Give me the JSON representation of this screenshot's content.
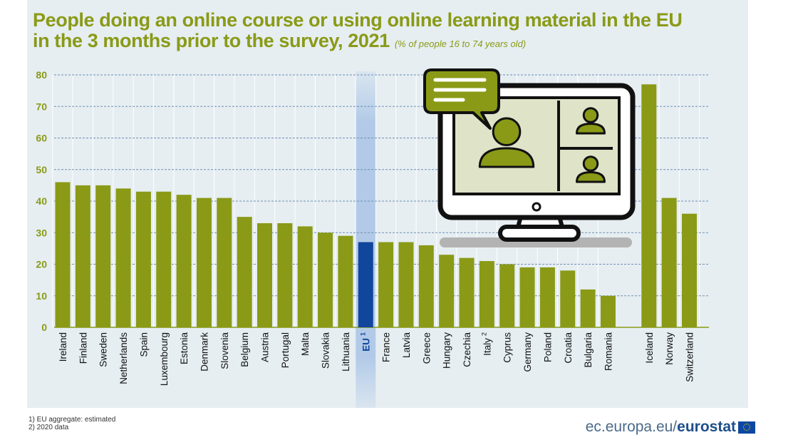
{
  "title": {
    "line1": "People doing an online course or using online learning material in the EU",
    "line2": "in the 3 months prior to the survey,  2021",
    "subtitle": "(% of people 16 to 74 years old)"
  },
  "footnotes": [
    "1) EU aggregate: estimated",
    "2) 2020 data"
  ],
  "logo": {
    "prefix": "ec.europa.eu/",
    "bold": "eurostat"
  },
  "colors": {
    "bar": "#8a9a16",
    "highlight_bar": "#10469c",
    "highlight_band": "#a9c4e6",
    "grid": "#6f8fb0",
    "panel": "#e6eef2",
    "title": "#8a9a16"
  },
  "illustration": {
    "icons": [
      "speech-bubble-icon",
      "monitor-icon",
      "user-icon",
      "user-icon",
      "user-icon"
    ]
  },
  "chart_data": {
    "type": "bar",
    "ylim": [
      0,
      80
    ],
    "yticks": [
      0,
      10,
      20,
      30,
      40,
      50,
      60,
      70,
      80
    ],
    "grid": "dashed horizontal",
    "highlight": "EU",
    "categories": [
      "Ireland",
      "Finland",
      "Sweden",
      "Netherlands",
      "Spain",
      "Luxembourg",
      "Estonia",
      "Denmark",
      "Slovenia",
      "Belgium",
      "Austria",
      "Portugal",
      "Malta",
      "Slovakia",
      "Lithuania",
      "EU",
      "France",
      "Latvia",
      "Greece",
      "Hungary",
      "Czechia",
      "Italy",
      "Cyprus",
      "Germany",
      "Poland",
      "Croatia",
      "Bulgaria",
      "Romania",
      "Iceland",
      "Norway",
      "Switzerland"
    ],
    "superscripts": {
      "EU": "1",
      "Italy": "2"
    },
    "values": [
      46,
      45,
      45,
      44,
      43,
      43,
      42,
      41,
      41,
      35,
      33,
      33,
      32,
      30,
      29,
      27,
      27,
      27,
      26,
      23,
      22,
      21,
      20,
      19,
      19,
      18,
      12,
      10,
      77,
      41,
      36
    ]
  }
}
